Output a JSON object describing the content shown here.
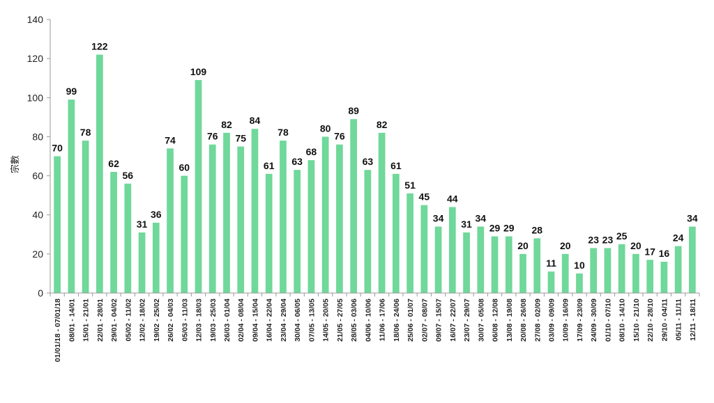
{
  "chart_data": {
    "type": "bar",
    "ylabel": "宗數",
    "ylim": [
      0,
      140
    ],
    "yticks": [
      "0",
      "20",
      "40",
      "60",
      "80",
      "100",
      "120",
      "140"
    ],
    "grid": false,
    "bar_color": "#6fd89a",
    "categories": [
      "01/01/18 - 07/01/18",
      "08/01 - 14/01",
      "15/01 - 21/01",
      "22/01 - 28/01",
      "29/01 - 04/02",
      "05/02 - 11/02",
      "12/02 - 18/02",
      "19/02 - 25/02",
      "26/02 - 04/03",
      "05/03 - 11/03",
      "12/03 - 18/03",
      "19/03 - 25/03",
      "26/03 - 01/04",
      "02/04 - 08/04",
      "09/04 - 15/04",
      "16/04 - 22/04",
      "23/04 - 29/04",
      "30/04 - 06/05",
      "07/05 - 13/05",
      "14/05 - 20/05",
      "21/05 - 27/05",
      "28/05 - 03/06",
      "04/06 - 10/06",
      "11/06 - 17/06",
      "18/06 - 24/06",
      "25/06 - 01/07",
      "02/07 - 08/07",
      "09/07 - 15/07",
      "16/07 - 22/07",
      "23/07 - 29/07",
      "30/07 - 05/08",
      "06/08 - 12/08",
      "13/08 - 19/08",
      "20/08 - 26/08",
      "27/08 - 02/09",
      "03/09 - 09/09",
      "10/09 - 16/09",
      "17/09 - 23/09",
      "24/09 - 30/09",
      "01/10 - 07/10",
      "08/10 - 14/10",
      "15/10 - 21/10",
      "22/10 - 28/10",
      "29/10 - 04/11",
      "05/11 - 11/11",
      "12/11 - 18/11"
    ],
    "values": [
      70,
      99,
      78,
      122,
      62,
      56,
      31,
      36,
      74,
      60,
      109,
      76,
      82,
      75,
      84,
      61,
      78,
      63,
      68,
      80,
      76,
      89,
      63,
      82,
      61,
      51,
      45,
      34,
      44,
      31,
      34,
      29,
      29,
      20,
      28,
      11,
      20,
      10,
      23,
      23,
      25,
      20,
      17,
      16,
      24,
      34
    ],
    "data_labels": [
      "70",
      "99",
      "78",
      "122",
      "62",
      "56",
      "31",
      "36",
      "74",
      "60",
      "109",
      "76",
      "82",
      "75",
      "84",
      "61",
      "78",
      "63",
      "68",
      "80",
      "76",
      "89",
      "63",
      "82",
      "61",
      "51",
      "45",
      "34",
      "44",
      "31",
      "34",
      "29",
      "29",
      "20",
      "28",
      "11",
      "20",
      "10",
      "23",
      "23",
      "25",
      "20",
      "17",
      "16",
      "24",
      "34"
    ]
  }
}
